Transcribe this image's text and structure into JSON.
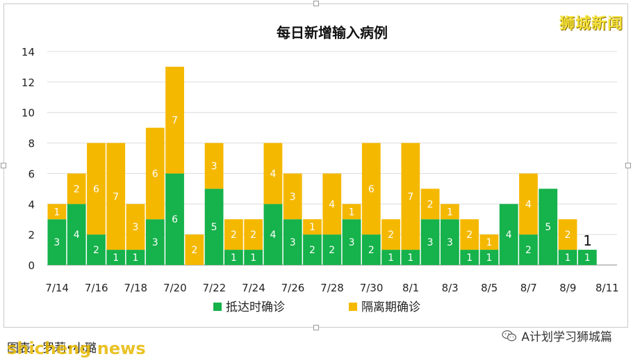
{
  "watermark_top": "狮城新闻",
  "footer": {
    "caption": "图表：罗莉•小璐",
    "brand": "shicheng news",
    "source": "A计划学习狮城篇",
    "source_icon": "wechat-icon"
  },
  "chart_data": {
    "type": "bar",
    "stacked": true,
    "title": "每日新增输入病例",
    "categories": [
      "7/14",
      "7/15",
      "7/16",
      "7/17",
      "7/18",
      "7/19",
      "7/20",
      "7/21",
      "7/22",
      "7/23",
      "7/24",
      "7/25",
      "7/26",
      "7/27",
      "7/28",
      "7/29",
      "7/30",
      "7/31",
      "8/1",
      "8/2",
      "8/3",
      "8/4",
      "8/5",
      "8/6",
      "8/7",
      "8/8",
      "8/9",
      "8/10",
      "8/11"
    ],
    "tick_labels": [
      "7/14",
      "7/16",
      "7/18",
      "7/20",
      "7/22",
      "7/24",
      "7/26",
      "7/28",
      "7/30",
      "8/1",
      "8/3",
      "8/5",
      "8/7",
      "8/9",
      "8/11"
    ],
    "series": [
      {
        "name": "抵达时确诊",
        "color": "#16b24b",
        "values": [
          3,
          4,
          2,
          1,
          1,
          3,
          6,
          0,
          5,
          1,
          1,
          4,
          3,
          2,
          2,
          3,
          2,
          1,
          1,
          3,
          3,
          1,
          1,
          4,
          2,
          5,
          1,
          1,
          null
        ]
      },
      {
        "name": "隔离期确诊",
        "color": "#f5b800",
        "values": [
          1,
          2,
          6,
          7,
          3,
          6,
          7,
          2,
          3,
          2,
          2,
          4,
          3,
          1,
          4,
          1,
          6,
          2,
          7,
          2,
          1,
          2,
          1,
          0,
          4,
          0,
          2,
          0,
          null
        ]
      }
    ],
    "annotations": [
      {
        "category": "8/10",
        "text": "1"
      }
    ],
    "ylim": [
      0,
      14
    ],
    "yticks": [
      0,
      2,
      4,
      6,
      8,
      10,
      12,
      14
    ],
    "grid": true,
    "legend": "bottom"
  }
}
